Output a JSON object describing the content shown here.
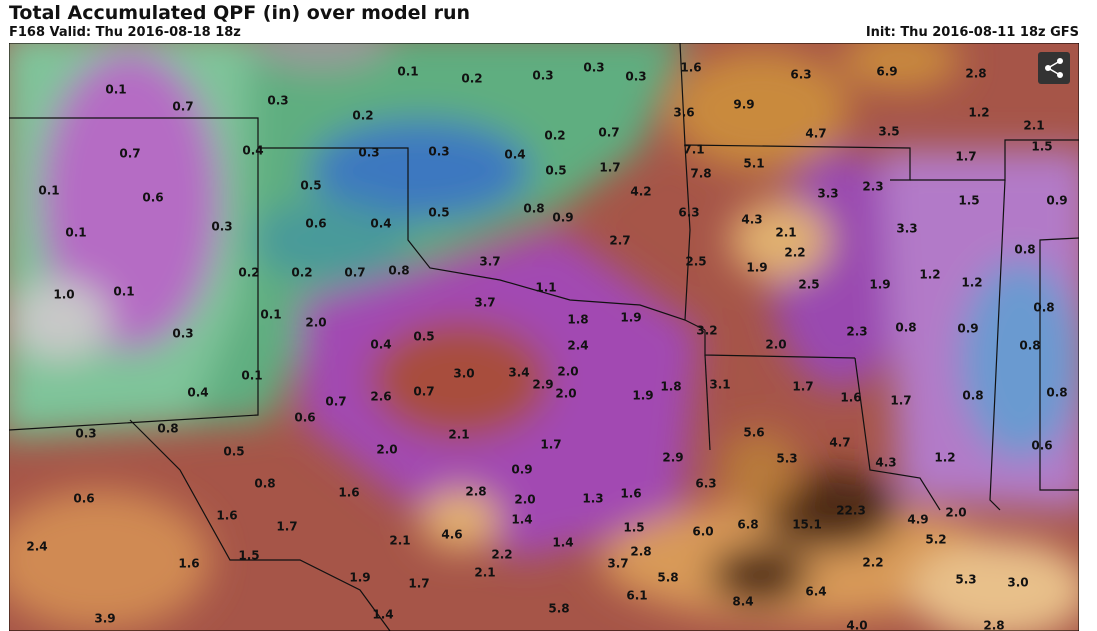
{
  "header": {
    "title": "Total Accumulated QPF (in) over model run",
    "valid": "F168 Valid: Thu 2016-08-18 18z",
    "init": "Init: Thu 2016-08-11 18z GFS"
  },
  "map": {
    "labels": [
      "0.1",
      "0.2",
      "0.3",
      "0.3",
      "0.3",
      "1.6",
      "6.3",
      "6.9",
      "2.8",
      "0.1",
      "0.7",
      "0.3",
      "0.2",
      "9.9",
      "1.2",
      "2.1",
      "3.6",
      "0.7",
      "0.4",
      "0.3",
      "0.3",
      "0.4",
      "0.2",
      "0.7",
      "4.7",
      "3.5",
      "1.5",
      "7.1",
      "5.1",
      "1.7",
      "0.5",
      "1.7",
      "7.8",
      "0.1",
      "0.6",
      "0.5",
      "4.2",
      "3.3",
      "2.3",
      "1.5",
      "0.9",
      "0.8",
      "0.9",
      "0.5",
      "0.6",
      "0.4",
      "0.3",
      "6.3",
      "4.3",
      "0.1",
      "2.7",
      "2.1",
      "3.3",
      "0.8",
      "0.2",
      "0.2",
      "0.7",
      "0.8",
      "3.7",
      "2.5",
      "1.9",
      "2.2",
      "1.2",
      "1.2",
      "2.5",
      "1.9",
      "1.0",
      "0.1",
      "1.1",
      "3.7",
      "0.1",
      "2.0",
      "1.8",
      "1.9",
      "0.8",
      "0.3",
      "3.2",
      "2.3",
      "0.8",
      "0.9",
      "0.4",
      "0.5",
      "2.4",
      "2.0",
      "0.8",
      "0.1",
      "3.0",
      "3.4",
      "2.0",
      "2.9",
      "1.8",
      "3.1",
      "1.7",
      "1.6",
      "1.7",
      "0.4",
      "0.7",
      "2.6",
      "0.7",
      "2.0",
      "1.9",
      "0.8",
      "0.8",
      "0.8",
      "0.6",
      "0.3",
      "2.1",
      "5.6",
      "4.7",
      "1.7",
      "0.6",
      "0.5",
      "2.0",
      "2.9",
      "5.3",
      "4.3",
      "1.2",
      "0.9",
      "0.8",
      "1.6",
      "2.8",
      "6.3",
      "1.3",
      "1.6",
      "2.0",
      "0.6",
      "1.4",
      "22.3",
      "1.6",
      "1.7",
      "15.1",
      "6.8",
      "6.0",
      "4.6",
      "1.5",
      "2.0",
      "4.9",
      "5.2",
      "2.4",
      "2.1",
      "1.4",
      "2.8",
      "2.2",
      "1.5",
      "1.6",
      "3.7",
      "2.2",
      "1.9",
      "2.1",
      "1.7",
      "5.8",
      "6.1",
      "6.4",
      "5.3",
      "3.0",
      "8.4",
      "5.8",
      "1.4",
      "3.9",
      "4.0",
      "2.8"
    ]
  }
}
